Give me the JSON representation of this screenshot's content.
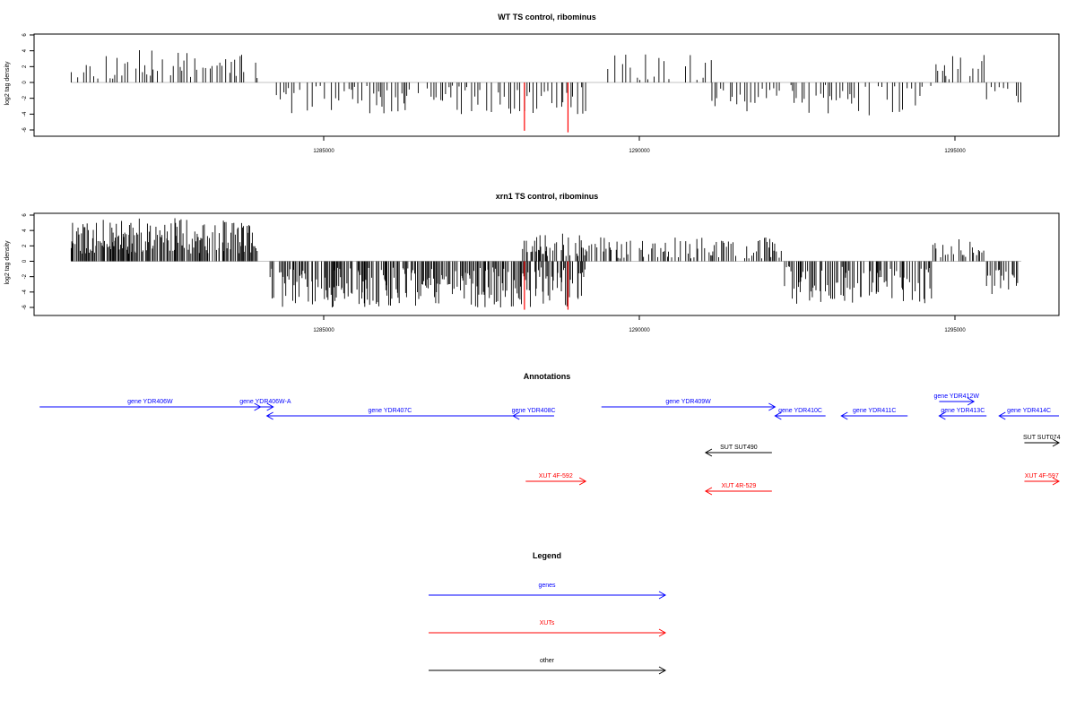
{
  "chart_data": [
    {
      "type": "bar",
      "title": "WT TS control, ribominus",
      "xlabel": "",
      "ylabel": "log2 tag density",
      "ylim": [
        -6,
        6
      ],
      "yticks": [
        -6,
        -4,
        -2,
        0,
        2,
        4,
        6
      ],
      "xlim": [
        1280500,
        1297000
      ],
      "xticks": [
        1285000,
        1290000,
        1295000
      ],
      "grid": false,
      "highlight_color": "#ff0000",
      "highlight_bars": [
        {
          "x": 1288180,
          "y": -6.1
        },
        {
          "x": 1288870,
          "y": -6.3
        }
      ],
      "bar_regions": [
        {
          "start": 1281000,
          "end": 1283950,
          "min": 0.4,
          "max": 4.1,
          "step": 45,
          "seed": 11
        },
        {
          "start": 1284250,
          "end": 1289150,
          "min": -4.0,
          "max": -0.4,
          "step": 45,
          "seed": 12
        },
        {
          "start": 1289500,
          "end": 1291150,
          "min": 0.3,
          "max": 3.6,
          "step": 60,
          "seed": 13
        },
        {
          "start": 1291150,
          "end": 1294700,
          "min": -4.2,
          "max": -0.3,
          "step": 50,
          "seed": 14
        },
        {
          "start": 1294700,
          "end": 1295500,
          "min": 0.4,
          "max": 3.5,
          "step": 50,
          "seed": 15
        },
        {
          "start": 1295500,
          "end": 1296050,
          "min": -2.8,
          "max": -0.5,
          "step": 50,
          "seed": 16
        }
      ]
    },
    {
      "type": "bar",
      "title": "xrn1 TS control, ribominus",
      "xlabel": "",
      "ylabel": "log2 tag density",
      "ylim": [
        -6,
        6
      ],
      "yticks": [
        -6,
        -4,
        -2,
        0,
        2,
        4,
        6
      ],
      "xlim": [
        1280500,
        1297000
      ],
      "xticks": [
        1285000,
        1290000,
        1295000
      ],
      "grid": false,
      "highlight_color": "#ff0000",
      "highlight_bars": [
        {
          "x": 1288180,
          "y": -6.3
        },
        {
          "x": 1288870,
          "y": -6.3
        }
      ],
      "bar_regions": [
        {
          "start": 1281000,
          "end": 1283950,
          "min": 1.0,
          "max": 5.6,
          "step": 14,
          "seed": 21
        },
        {
          "start": 1284150,
          "end": 1289150,
          "min": -6.0,
          "max": -0.8,
          "step": 16,
          "seed": 22
        },
        {
          "start": 1288150,
          "end": 1289150,
          "min": 0.6,
          "max": 3.6,
          "step": 22,
          "seed": 23
        },
        {
          "start": 1289150,
          "end": 1292300,
          "min": 0.3,
          "max": 3.2,
          "step": 28,
          "seed": 24
        },
        {
          "start": 1292300,
          "end": 1294650,
          "min": -5.7,
          "max": -0.6,
          "step": 18,
          "seed": 25
        },
        {
          "start": 1294650,
          "end": 1295500,
          "min": 0.5,
          "max": 3.2,
          "step": 28,
          "seed": 26
        },
        {
          "start": 1295500,
          "end": 1296050,
          "min": -4.3,
          "max": -0.6,
          "step": 24,
          "seed": 27
        }
      ]
    }
  ],
  "annotations": {
    "title": "Annotations",
    "features": [
      {
        "label": "gene YDR406W",
        "kind": "gene",
        "strand": "+",
        "start": 1280500,
        "end": 1284000,
        "track": 1
      },
      {
        "label": "gene YDR406W-A",
        "kind": "gene",
        "strand": "+",
        "start": 1283950,
        "end": 1284200,
        "track": 1
      },
      {
        "label": "gene YDR407C",
        "kind": "gene",
        "strand": "-",
        "start": 1284100,
        "end": 1288000,
        "track": 2
      },
      {
        "label": "gene YDR408C",
        "kind": "gene",
        "strand": "-",
        "start": 1288000,
        "end": 1288650,
        "track": 2
      },
      {
        "label": "gene YDR409W",
        "kind": "gene",
        "strand": "+",
        "start": 1289400,
        "end": 1292150,
        "track": 1
      },
      {
        "label": "gene YDR410C",
        "kind": "gene",
        "strand": "-",
        "start": 1292150,
        "end": 1292950,
        "track": 2
      },
      {
        "label": "gene YDR411C",
        "kind": "gene",
        "strand": "-",
        "start": 1293200,
        "end": 1294250,
        "track": 2
      },
      {
        "label": "gene YDR412W",
        "kind": "gene",
        "strand": "+",
        "start": 1294750,
        "end": 1295300,
        "track": 0
      },
      {
        "label": "gene YDR413C",
        "kind": "gene",
        "strand": "-",
        "start": 1294750,
        "end": 1295500,
        "track": 2
      },
      {
        "label": "gene YDR414C",
        "kind": "gene",
        "strand": "-",
        "start": 1295700,
        "end": 1297000,
        "track": 2
      },
      {
        "label": "SUT SUT490",
        "kind": "other",
        "strand": "-",
        "start": 1291050,
        "end": 1292100,
        "track": 3
      },
      {
        "label": "SUT SUT074",
        "kind": "other",
        "strand": "+",
        "start": 1296100,
        "end": 1297000,
        "track": 4
      },
      {
        "label": "XUT 4F-592",
        "kind": "xut",
        "strand": "+",
        "start": 1288200,
        "end": 1289150,
        "track": 5
      },
      {
        "label": "XUT 4R-529",
        "kind": "xut",
        "strand": "-",
        "start": 1291050,
        "end": 1292100,
        "track": 6
      },
      {
        "label": "XUT 4F-597",
        "kind": "xut",
        "strand": "+",
        "start": 1296100,
        "end": 1297000,
        "track": 5
      }
    ]
  },
  "legend": {
    "title": "Legend",
    "items": [
      {
        "label": "genes",
        "color": "#0000ff"
      },
      {
        "label": "XUTs",
        "color": "#ff0000"
      },
      {
        "label": "other",
        "color": "#000000"
      }
    ]
  },
  "colors": {
    "gene": "#0000ff",
    "xut": "#ff0000",
    "other": "#000000",
    "bar": "#000000",
    "axis": "#000000"
  }
}
